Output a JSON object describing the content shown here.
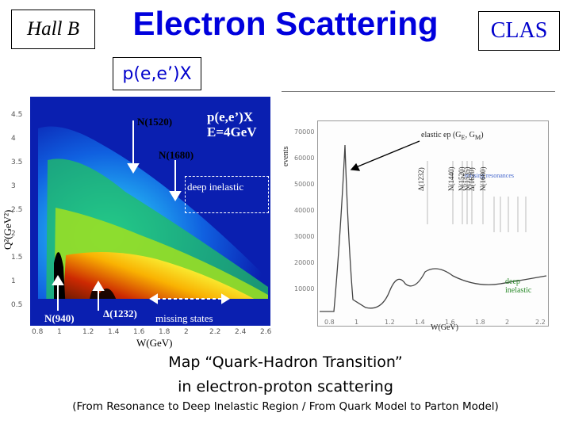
{
  "header": {
    "hall": "Hall B",
    "title": "Electron Scattering",
    "experiment": "CLAS",
    "reaction": "p(e,e’)X"
  },
  "left_plot": {
    "ylabel": "Q²(GeV²)",
    "xlabel": "W(GeV)",
    "yticks": [
      "4.5",
      "4",
      "3.5",
      "3",
      "2.5",
      "2",
      "1.5",
      "1",
      "0.5"
    ],
    "xticks": [
      "0.8",
      "1",
      "1.2",
      "1.4",
      "1.6",
      "1.8",
      "2",
      "2.2",
      "2.4",
      "2.6"
    ],
    "legend_line1": "p(e,e’)X",
    "legend_line2": "E=4GeV",
    "labels": {
      "n1520": "N(1520)",
      "n1680": "N(1680)",
      "deep": "deep inelastic",
      "n940": "N(940)",
      "d1232": "Δ(1232)",
      "missing": "missing states"
    }
  },
  "right_plot": {
    "ylabel": "events",
    "xlabel": "W(GeV)",
    "yticks": [
      "70000",
      "60000",
      "50000",
      "40000",
      "30000",
      "20000",
      "10000"
    ],
    "xticks": [
      "0.8",
      "1",
      "1.2",
      "1.4",
      "1.6",
      "1.8",
      "2",
      "2.2"
    ],
    "elastic": "elastic ep (G",
    "elastic_sub_e": "E",
    "elastic_mid": ", G",
    "elastic_sub_m": "M",
    "elastic_end": ")",
    "res_labels": [
      "Δ(1232)",
      "N(1440)",
      "N(1520)",
      "N(1535)",
      "Δ(1620)",
      "N(1680)"
    ],
    "missing": "missing resonances",
    "deep_line1": "deep",
    "deep_line2": "inelastic"
  },
  "caption": {
    "line1": "Map “Quark-Hadron Transition”",
    "line2": "in electron-proton scattering",
    "line3": "(From Resonance to Deep Inelastic Region / From Quark Model to Parton Model)"
  }
}
